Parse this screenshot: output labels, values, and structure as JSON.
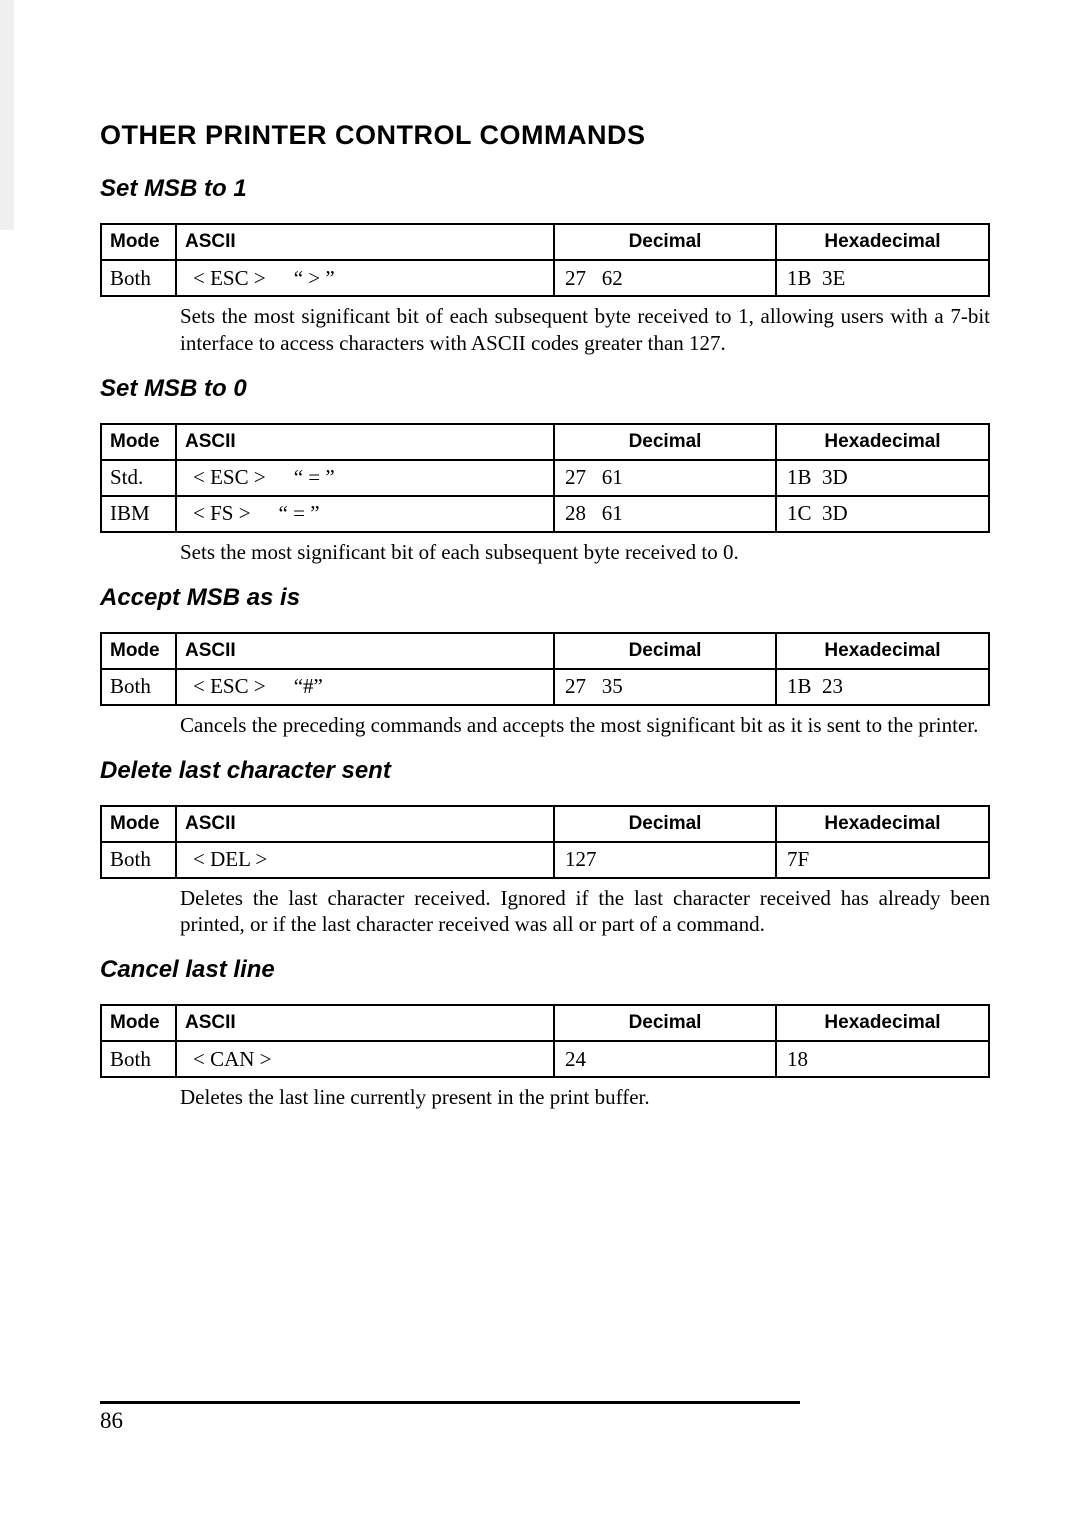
{
  "title": "OTHER PRINTER CONTROL COMMANDS",
  "page_number": "86",
  "headers": {
    "mode": "Mode",
    "ascii": "ASCII",
    "decimal": "Decimal",
    "hex": "Hexadecimal"
  },
  "sections": [
    {
      "heading": "Set MSB to 1",
      "rows": [
        {
          "mode": "Both",
          "ascii_tokens": [
            "< ESC >",
            "“ > ”"
          ],
          "decimal": "27   62",
          "hex": "1B  3E"
        }
      ],
      "description": "Sets the most significant bit of each subsequent byte received to 1, allowing users with a 7-bit interface to access characters with ASCII codes greater than 127."
    },
    {
      "heading": "Set MSB to 0",
      "rows": [
        {
          "mode": "Std.",
          "ascii_tokens": [
            "< ESC >",
            "“ = ”"
          ],
          "decimal": "27   61",
          "hex": "1B  3D"
        },
        {
          "mode": "IBM",
          "ascii_tokens": [
            "< FS >",
            "“ = ”"
          ],
          "decimal": "28   61",
          "hex": "1C  3D"
        }
      ],
      "description": "Sets the most significant bit of each subsequent byte received to 0."
    },
    {
      "heading": "Accept MSB as is",
      "rows": [
        {
          "mode": "Both",
          "ascii_tokens": [
            "< ESC >",
            "“#”"
          ],
          "decimal": "27   35",
          "hex": "1B  23"
        }
      ],
      "description": "Cancels the preceding commands and accepts the most significant bit as it is sent to the printer."
    },
    {
      "heading": "Delete last character sent",
      "rows": [
        {
          "mode": "Both",
          "ascii_tokens": [
            "< DEL >"
          ],
          "decimal": "127",
          "hex": "7F"
        }
      ],
      "description": "Deletes the last character received. Ignored if the last character received has already been printed, or if the last character received was all or part of a command."
    },
    {
      "heading": "Cancel last line",
      "rows": [
        {
          "mode": "Both",
          "ascii_tokens": [
            "< CAN >"
          ],
          "decimal": "24",
          "hex": "18"
        }
      ],
      "description": "Deletes the last line currently present in the print buffer."
    }
  ]
}
